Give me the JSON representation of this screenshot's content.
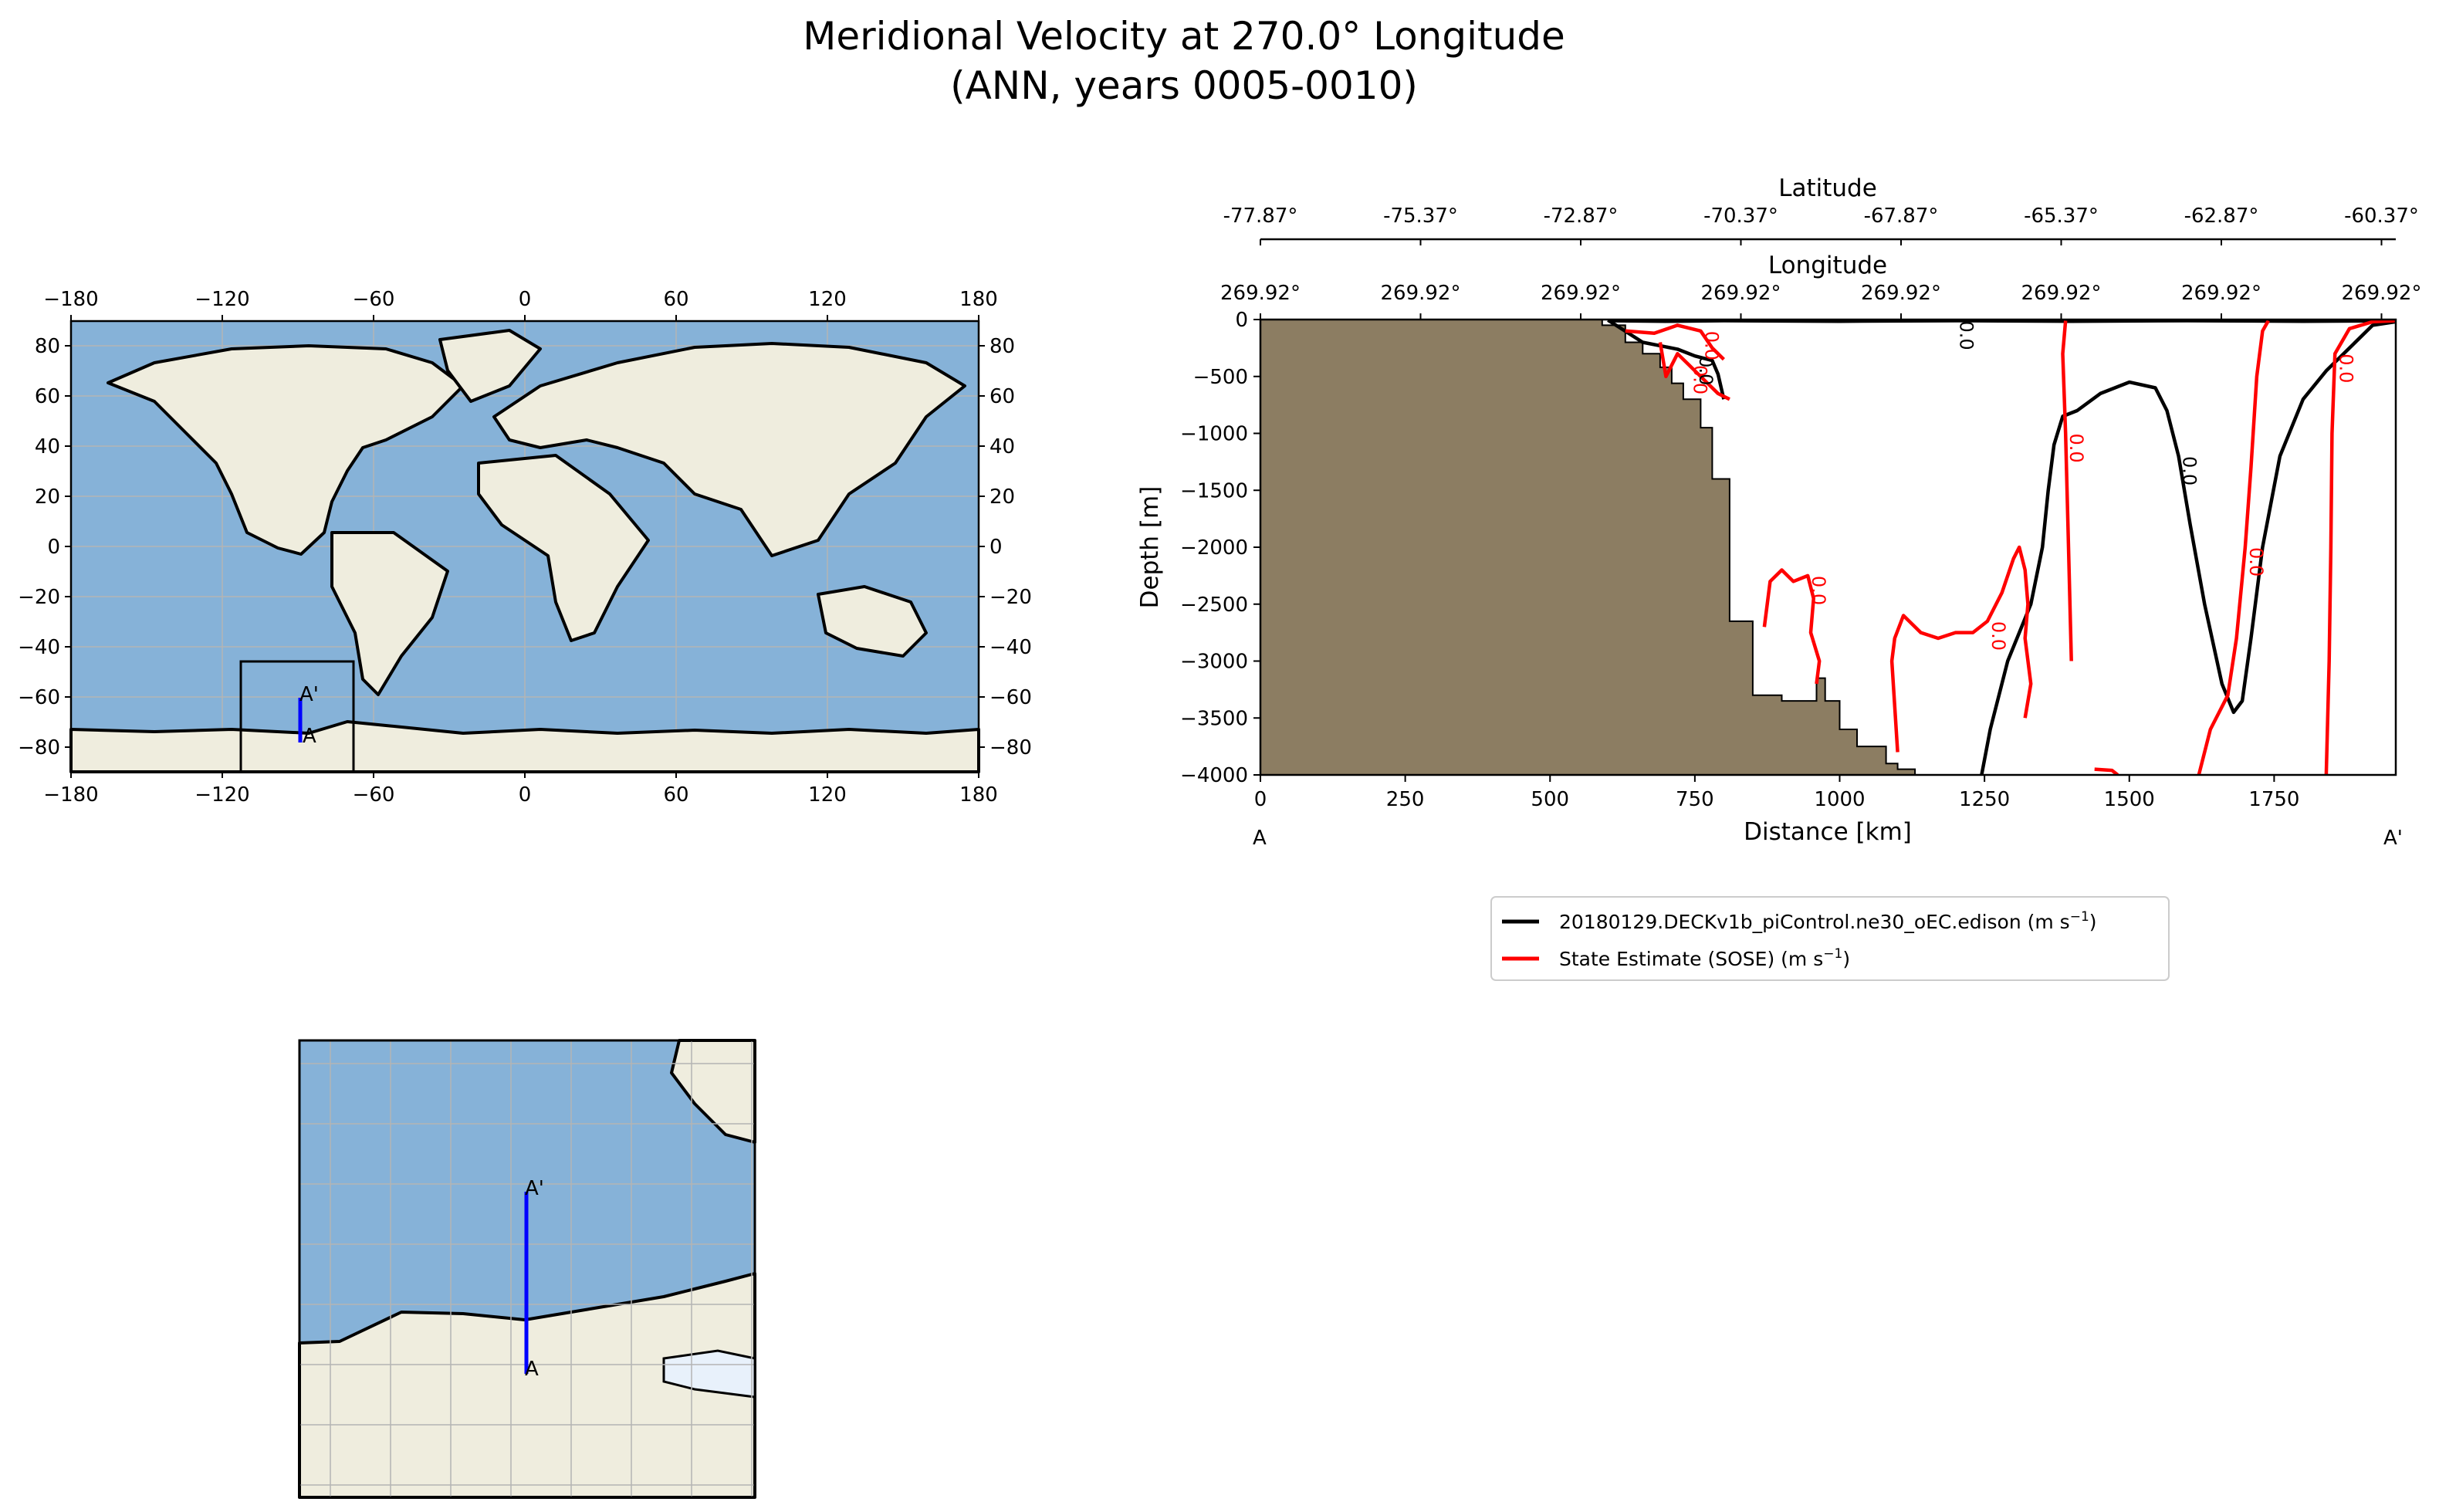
{
  "figure": {
    "title_line1": "Meridional Velocity at 270.0° Longitude",
    "title_line2": "(ANN, years 0005-0010)"
  },
  "colors": {
    "ocean": "#86b2d8",
    "land": "#efedde",
    "seabed": "#8c7d62",
    "model_line": "#000000",
    "obs_line": "#ff0000",
    "transect": "#0000ff",
    "grid": "#b4b4b4"
  },
  "map_global": {
    "x_ticks": [
      "−180",
      "−120",
      "−60",
      "0",
      "60",
      "120",
      "180"
    ],
    "y_ticks": [
      "80",
      "60",
      "40",
      "20",
      "0",
      "−20",
      "−40",
      "−60",
      "−80"
    ],
    "point_start": "A",
    "point_end": "A'"
  },
  "map_inset": {
    "point_start": "A",
    "point_end": "A'"
  },
  "chart_data": {
    "type": "line",
    "subtype": "contour_section",
    "xlabel": "Distance [km]",
    "ylabel": "Depth [m]",
    "xlim": [
      0,
      1960
    ],
    "ylim": [
      -4000,
      0
    ],
    "x_ticks": [
      "0",
      "250",
      "500",
      "750",
      "1000",
      "1250",
      "1500",
      "1750"
    ],
    "y_ticks": [
      "0",
      "−500",
      "−1000",
      "−1500",
      "−2000",
      "−2500",
      "−3000",
      "−3500",
      "−4000"
    ],
    "top_axis_1": {
      "label": "Latitude",
      "ticks": [
        "-77.87°",
        "-75.37°",
        "-72.87°",
        "-70.37°",
        "-67.87°",
        "-65.37°",
        "-62.87°",
        "-60.37°"
      ]
    },
    "top_axis_2": {
      "label": "Longitude",
      "ticks": [
        "269.92°",
        "269.92°",
        "269.92°",
        "269.92°",
        "269.92°",
        "269.92°",
        "269.92°",
        "269.92°"
      ]
    },
    "section_start_label": "A",
    "section_end_label": "A'",
    "contour_level_label": "0.0",
    "series": [
      {
        "name": "20180129.DECKv1b_piControl.ne30_oEC.edison (m s−1)",
        "legend_main": "20180129.DECKv1b_piControl.ne30_oEC.edison (m s",
        "legend_sup": "−1",
        "color": "#000000",
        "contours": [
          [
            [
              1245,
              -4000
            ],
            [
              1260,
              -3600
            ],
            [
              1290,
              -3000
            ],
            [
              1330,
              -2500
            ],
            [
              1350,
              -2000
            ],
            [
              1360,
              -1500
            ],
            [
              1370,
              -1100
            ],
            [
              1385,
              -850
            ],
            [
              1410,
              -800
            ],
            [
              1450,
              -650
            ],
            [
              1500,
              -550
            ],
            [
              1545,
              -600
            ],
            [
              1565,
              -800
            ],
            [
              1585,
              -1200
            ],
            [
              1605,
              -1800
            ],
            [
              1630,
              -2500
            ],
            [
              1660,
              -3200
            ],
            [
              1680,
              -3450
            ],
            [
              1695,
              -3350
            ],
            [
              1710,
              -2800
            ],
            [
              1730,
              -2000
            ],
            [
              1760,
              -1200
            ],
            [
              1800,
              -700
            ],
            [
              1840,
              -450
            ],
            [
              1880,
              -250
            ],
            [
              1920,
              -50
            ],
            [
              1960,
              -20
            ]
          ],
          [
            [
              600,
              -5
            ],
            [
              660,
              -200
            ],
            [
              720,
              -260
            ],
            [
              750,
              -320
            ],
            [
              780,
              -360
            ],
            [
              790,
              -480
            ],
            [
              800,
              -700
            ]
          ],
          [
            [
              600,
              -10
            ],
            [
              700,
              -15
            ],
            [
              800,
              -10
            ],
            [
              1000,
              -15
            ],
            [
              1200,
              -10
            ],
            [
              1400,
              -15
            ],
            [
              1600,
              -10
            ],
            [
              1800,
              -15
            ],
            [
              1960,
              -10
            ]
          ]
        ]
      },
      {
        "name": "State Estimate (SOSE) (m s−1)",
        "legend_main": "State Estimate (SOSE) (m s",
        "legend_sup": "−1",
        "color": "#ff0000",
        "contours": [
          [
            [
              1400,
              -3000
            ],
            [
              1395,
              -2000
            ],
            [
              1390,
              -1000
            ],
            [
              1385,
              -300
            ],
            [
              1390,
              -10
            ]
          ],
          [
            [
              1620,
              -4000
            ],
            [
              1640,
              -3600
            ],
            [
              1670,
              -3300
            ],
            [
              1685,
              -2800
            ],
            [
              1700,
              -2000
            ],
            [
              1710,
              -1300
            ],
            [
              1720,
              -500
            ],
            [
              1730,
              -100
            ],
            [
              1740,
              -10
            ]
          ],
          [
            [
              1840,
              -4000
            ],
            [
              1845,
              -3000
            ],
            [
              1848,
              -2000
            ],
            [
              1850,
              -1000
            ],
            [
              1855,
              -300
            ],
            [
              1880,
              -80
            ],
            [
              1920,
              -20
            ],
            [
              1960,
              -10
            ]
          ],
          [
            [
              1100,
              -3800
            ],
            [
              1090,
              -3000
            ],
            [
              1095,
              -2800
            ],
            [
              1110,
              -2600
            ],
            [
              1140,
              -2750
            ],
            [
              1170,
              -2800
            ],
            [
              1200,
              -2750
            ],
            [
              1230,
              -2750
            ],
            [
              1255,
              -2650
            ],
            [
              1280,
              -2400
            ],
            [
              1300,
              -2100
            ],
            [
              1310,
              -2000
            ],
            [
              1320,
              -2200
            ],
            [
              1325,
              -2500
            ],
            [
              1320,
              -2800
            ],
            [
              1330,
              -3200
            ],
            [
              1320,
              -3500
            ]
          ],
          [
            [
              870,
              -2700
            ],
            [
              880,
              -2300
            ],
            [
              900,
              -2200
            ],
            [
              920,
              -2300
            ],
            [
              945,
              -2250
            ],
            [
              955,
              -2450
            ],
            [
              950,
              -2750
            ],
            [
              965,
              -3000
            ],
            [
              960,
              -3200
            ]
          ],
          [
            [
              690,
              -200
            ],
            [
              700,
              -500
            ],
            [
              720,
              -300
            ],
            [
              740,
              -400
            ],
            [
              760,
              -500
            ],
            [
              790,
              -650
            ],
            [
              810,
              -700
            ]
          ],
          [
            [
              630,
              -100
            ],
            [
              680,
              -120
            ],
            [
              720,
              -50
            ],
            [
              760,
              -100
            ],
            [
              780,
              -250
            ],
            [
              800,
              -350
            ]
          ],
          [
            [
              1440,
              -3950
            ],
            [
              1470,
              -3960
            ],
            [
              1480,
              -4000
            ]
          ]
        ]
      }
    ],
    "seabed_profile": [
      [
        0,
        0
      ],
      [
        590,
        0
      ],
      [
        590,
        -50
      ],
      [
        630,
        -50
      ],
      [
        630,
        -200
      ],
      [
        660,
        -200
      ],
      [
        660,
        -300
      ],
      [
        690,
        -300
      ],
      [
        690,
        -420
      ],
      [
        710,
        -420
      ],
      [
        710,
        -560
      ],
      [
        730,
        -560
      ],
      [
        730,
        -700
      ],
      [
        760,
        -700
      ],
      [
        760,
        -950
      ],
      [
        780,
        -950
      ],
      [
        780,
        -1400
      ],
      [
        810,
        -1400
      ],
      [
        810,
        -2650
      ],
      [
        850,
        -2650
      ],
      [
        850,
        -3300
      ],
      [
        900,
        -3300
      ],
      [
        900,
        -3350
      ],
      [
        960,
        -3350
      ],
      [
        960,
        -3150
      ],
      [
        975,
        -3150
      ],
      [
        975,
        -3350
      ],
      [
        1000,
        -3350
      ],
      [
        1000,
        -3600
      ],
      [
        1030,
        -3600
      ],
      [
        1030,
        -3750
      ],
      [
        1080,
        -3750
      ],
      [
        1080,
        -3900
      ],
      [
        1100,
        -3900
      ],
      [
        1100,
        -3950
      ],
      [
        1130,
        -3950
      ],
      [
        1130,
        -4000
      ],
      [
        0,
        -4000
      ]
    ]
  }
}
